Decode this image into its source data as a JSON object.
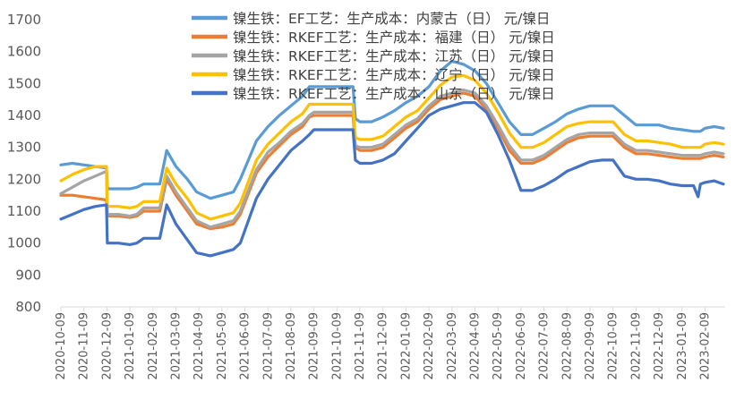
{
  "chart_data": {
    "type": "line",
    "title": "",
    "xlabel": "",
    "ylabel": "",
    "ylim": [
      800,
      1700
    ],
    "yticks": [
      800,
      900,
      1000,
      1100,
      1200,
      1300,
      1400,
      1500,
      1600,
      1700
    ],
    "grid": false,
    "legend_position": "top-right",
    "x_tick_labels": [
      "2020-10-09",
      "2020-11-09",
      "2020-12-09",
      "2021-01-09",
      "2021-02-09",
      "2021-03-09",
      "2021-04-09",
      "2021-05-09",
      "2021-06-09",
      "2021-07-09",
      "2021-08-09",
      "2021-09-09",
      "2021-10-09",
      "2021-11-09",
      "2021-12-09",
      "2022-01-09",
      "2022-02-09",
      "2022-03-09",
      "2022-04-09",
      "2022-05-09",
      "2022-06-09",
      "2022-07-09",
      "2022-08-09",
      "2022-09-09",
      "2022-10-09",
      "2022-11-09",
      "2022-12-09",
      "2023-01-09",
      "2023-02-09"
    ],
    "x": [
      0,
      0.5,
      1,
      1.5,
      1.98,
      2.02,
      2.5,
      3,
      3.3,
      3.6,
      3.7,
      4,
      4.3,
      4.6,
      5,
      5.5,
      5.9,
      6.5,
      7,
      7.5,
      7.8,
      8.5,
      9,
      9.5,
      10,
      10.5,
      10.8,
      11,
      11.5,
      12,
      12.5,
      12.7,
      12.8,
      13,
      13.5,
      14,
      14.5,
      15,
      15.5,
      16,
      16.5,
      17,
      17.5,
      18,
      18.5,
      19,
      19.5,
      20,
      20.5,
      21,
      21.5,
      22,
      22.5,
      23,
      23.5,
      24,
      24.5,
      25,
      25.5,
      26,
      26.5,
      27,
      27.5,
      27.7,
      27.8,
      28,
      28.4,
      28.8
    ],
    "series": [
      {
        "name": "镍生铁：EF工艺：生产成本：内蒙古（日） 元/镍日",
        "color": "#5B9BD5",
        "values": [
          1245,
          1250,
          1245,
          1240,
          1235,
          1170,
          1170,
          1170,
          1175,
          1185,
          1185,
          1185,
          1185,
          1290,
          1240,
          1200,
          1160,
          1140,
          1150,
          1160,
          1200,
          1320,
          1365,
          1400,
          1430,
          1460,
          1490,
          1490,
          1490,
          1490,
          1490,
          1490,
          1390,
          1380,
          1380,
          1395,
          1415,
          1440,
          1460,
          1490,
          1540,
          1570,
          1560,
          1540,
          1500,
          1440,
          1380,
          1340,
          1340,
          1360,
          1380,
          1405,
          1420,
          1430,
          1430,
          1430,
          1400,
          1370,
          1370,
          1370,
          1360,
          1355,
          1350,
          1350,
          1350,
          1360,
          1365,
          1360
        ]
      },
      {
        "name": "镍生铁：RKEF工艺：生产成本：福建（日） 元/镍日",
        "color": "#ED7D31",
        "values": [
          1150,
          1150,
          1145,
          1140,
          1135,
          1085,
          1085,
          1080,
          1085,
          1100,
          1100,
          1100,
          1100,
          1200,
          1150,
          1100,
          1060,
          1045,
          1050,
          1060,
          1090,
          1220,
          1270,
          1305,
          1340,
          1365,
          1395,
          1400,
          1400,
          1400,
          1400,
          1400,
          1300,
          1290,
          1290,
          1300,
          1330,
          1360,
          1380,
          1420,
          1450,
          1460,
          1470,
          1460,
          1420,
          1360,
          1290,
          1250,
          1250,
          1265,
          1290,
          1315,
          1330,
          1335,
          1335,
          1335,
          1300,
          1280,
          1280,
          1275,
          1270,
          1265,
          1265,
          1265,
          1265,
          1270,
          1275,
          1270
        ]
      },
      {
        "name": "镍生铁：RKEF工艺：生产成本：江苏（日） 元/镍日",
        "color": "#A5A5A5",
        "values": [
          1155,
          1175,
          1195,
          1210,
          1225,
          1090,
          1090,
          1085,
          1090,
          1110,
          1110,
          1110,
          1110,
          1210,
          1160,
          1110,
          1070,
          1050,
          1060,
          1070,
          1100,
          1230,
          1285,
          1315,
          1350,
          1375,
          1400,
          1410,
          1410,
          1410,
          1410,
          1410,
          1305,
          1300,
          1300,
          1310,
          1340,
          1370,
          1390,
          1430,
          1460,
          1470,
          1480,
          1470,
          1430,
          1370,
          1305,
          1260,
          1260,
          1275,
          1300,
          1325,
          1340,
          1345,
          1345,
          1345,
          1310,
          1290,
          1290,
          1285,
          1280,
          1275,
          1275,
          1275,
          1275,
          1280,
          1285,
          1280
        ]
      },
      {
        "name": "镍生铁：RKEF工艺：生产成本：辽宁（日） 元/镍日",
        "color": "#FFC000",
        "values": [
          1195,
          1215,
          1230,
          1240,
          1240,
          1115,
          1115,
          1110,
          1115,
          1130,
          1130,
          1130,
          1130,
          1235,
          1185,
          1140,
          1095,
          1075,
          1085,
          1095,
          1125,
          1260,
          1310,
          1345,
          1380,
          1405,
          1435,
          1435,
          1435,
          1435,
          1435,
          1435,
          1330,
          1325,
          1325,
          1335,
          1365,
          1395,
          1415,
          1455,
          1495,
          1520,
          1525,
          1510,
          1470,
          1410,
          1345,
          1300,
          1300,
          1315,
          1340,
          1365,
          1375,
          1380,
          1380,
          1380,
          1340,
          1320,
          1320,
          1315,
          1310,
          1300,
          1300,
          1300,
          1300,
          1310,
          1315,
          1310
        ]
      },
      {
        "name": "镍生铁：RKEF工艺：生产成本：山东（日） 元/镍日",
        "color": "#4472C4",
        "values": [
          1075,
          1090,
          1105,
          1115,
          1120,
          1000,
          1000,
          995,
          1000,
          1015,
          1015,
          1015,
          1015,
          1120,
          1060,
          1010,
          970,
          960,
          970,
          980,
          1000,
          1140,
          1200,
          1245,
          1290,
          1320,
          1340,
          1355,
          1355,
          1355,
          1355,
          1355,
          1260,
          1250,
          1250,
          1260,
          1280,
          1320,
          1360,
          1400,
          1420,
          1430,
          1440,
          1440,
          1410,
          1340,
          1260,
          1165,
          1165,
          1180,
          1200,
          1225,
          1240,
          1255,
          1260,
          1260,
          1210,
          1200,
          1200,
          1195,
          1185,
          1180,
          1180,
          1145,
          1185,
          1190,
          1195,
          1185
        ]
      }
    ]
  }
}
